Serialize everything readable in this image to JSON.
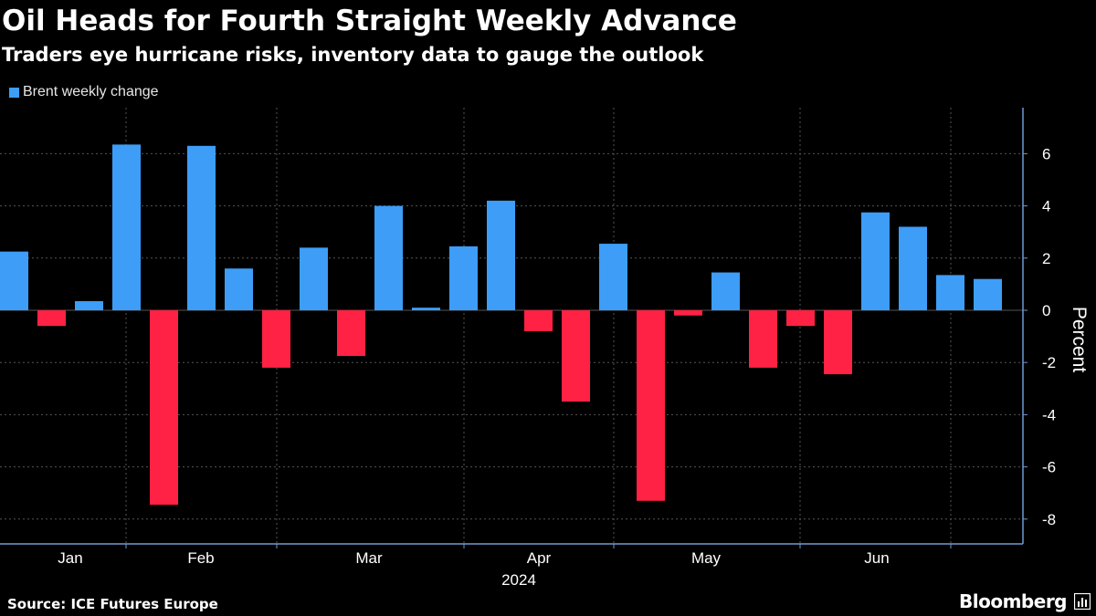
{
  "title": "Oil Heads for Fourth Straight Weekly Advance",
  "subtitle": "Traders eye hurricane risks, inventory data to gauge the outlook",
  "source": "Source: ICE Futures Europe",
  "brand": "Bloomberg",
  "brand_icon": "bloomberg-chart-icon",
  "colors": {
    "positive": "#3d9df7",
    "negative": "#ff2244",
    "background": "#000000",
    "axis": "#6f9ad3",
    "grid": "#555555"
  },
  "chart_data": {
    "type": "bar",
    "legend": [
      {
        "name": "Brent weekly change",
        "color": "#3d9df7"
      }
    ],
    "legend_position": "top-left",
    "series": [
      {
        "name": "Brent weekly change",
        "x": [
          "2024-01-05",
          "2024-01-12",
          "2024-01-19",
          "2024-01-26",
          "2024-02-02",
          "2024-02-09",
          "2024-02-16",
          "2024-02-23",
          "2024-03-01",
          "2024-03-08",
          "2024-03-15",
          "2024-03-22",
          "2024-03-28",
          "2024-04-05",
          "2024-04-12",
          "2024-04-19",
          "2024-04-26",
          "2024-05-03",
          "2024-05-10",
          "2024-05-17",
          "2024-05-24",
          "2024-05-31",
          "2024-06-07",
          "2024-06-14",
          "2024-06-21",
          "2024-06-28",
          "2024-07-05"
        ],
        "values": [
          2.25,
          -0.6,
          0.35,
          6.35,
          -7.45,
          6.3,
          1.6,
          -2.2,
          2.4,
          -1.75,
          4.0,
          0.1,
          2.45,
          4.2,
          -0.8,
          -3.5,
          2.55,
          -7.3,
          -0.2,
          1.45,
          -2.2,
          -0.6,
          -2.45,
          3.75,
          3.2,
          1.35,
          1.2
        ]
      }
    ],
    "yaxis": {
      "label": "Percent",
      "ticks": [
        6,
        4,
        2,
        0,
        -2,
        -4,
        -6,
        -8
      ],
      "tick_labels": [
        "6",
        "4",
        "2",
        "0",
        "-2",
        "-4",
        "-6",
        "-8"
      ],
      "range": [
        -8.8,
        7.8
      ],
      "position": "right"
    },
    "xaxis": {
      "month_labels": [
        "Jan",
        "Feb",
        "Mar",
        "Apr",
        "May",
        "Jun"
      ],
      "year_label": "2024"
    },
    "grid": true
  }
}
